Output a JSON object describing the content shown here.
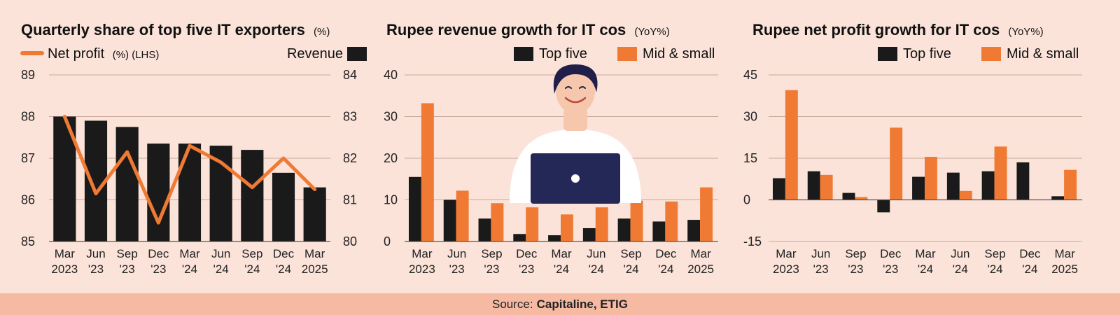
{
  "colors": {
    "dark": "#1a1a1a",
    "orange": "#f07a33",
    "background": "#fbe3d9",
    "source_band": "#f6b9a2"
  },
  "source": {
    "label": "Source:",
    "value": "Capitaline, ETIG"
  },
  "chart_data": [
    {
      "type": "bar+line",
      "title": "Quarterly share of top five IT exporters",
      "title_unit": "(%)",
      "legend": {
        "line_label": "Net profit",
        "line_unit": "(%) (LHS)",
        "bar_label": "Revenue"
      },
      "categories": [
        [
          "Mar",
          "2023"
        ],
        [
          "Jun",
          "'23"
        ],
        [
          "Sep",
          "'23"
        ],
        [
          "Dec",
          "'23"
        ],
        [
          "Mar",
          "'24"
        ],
        [
          "Jun",
          "'24"
        ],
        [
          "Sep",
          "'24"
        ],
        [
          "Dec",
          "'24"
        ],
        [
          "Mar",
          "2025"
        ]
      ],
      "left_axis": {
        "ticks": [
          "89",
          "88",
          "87",
          "86",
          "85"
        ],
        "min": 85,
        "max": 89
      },
      "right_axis": {
        "ticks": [
          "84",
          "83",
          "82",
          "81",
          "80"
        ],
        "min": 80,
        "max": 84
      },
      "series": [
        {
          "name": "Revenue",
          "axis": "right",
          "kind": "bar",
          "values": [
            83.0,
            82.9,
            82.75,
            82.35,
            82.35,
            82.3,
            82.2,
            81.65,
            81.3
          ]
        },
        {
          "name": "Net profit",
          "axis": "left",
          "kind": "line",
          "values": [
            88.0,
            86.15,
            87.15,
            85.45,
            87.3,
            86.9,
            86.3,
            87.0,
            86.25
          ]
        }
      ]
    },
    {
      "type": "bar",
      "title": "Rupee revenue growth for IT cos",
      "title_unit": "(YoY%)",
      "legend": [
        "Top five",
        "Mid & small"
      ],
      "categories": [
        [
          "Mar",
          "2023"
        ],
        [
          "Jun",
          "'23"
        ],
        [
          "Sep",
          "'23"
        ],
        [
          "Dec",
          "'23"
        ],
        [
          "Mar",
          "'24"
        ],
        [
          "Jun",
          "'24"
        ],
        [
          "Sep",
          "'24"
        ],
        [
          "Dec",
          "'24"
        ],
        [
          "Mar",
          "2025"
        ]
      ],
      "y_axis": {
        "ticks": [
          "40",
          "30",
          "20",
          "10",
          "0"
        ],
        "min": 0,
        "max": 40
      },
      "series": [
        {
          "name": "Top five",
          "values": [
            15.5,
            10.0,
            5.5,
            1.8,
            1.5,
            3.2,
            5.5,
            4.8,
            5.2
          ]
        },
        {
          "name": "Mid & small",
          "values": [
            33.2,
            12.2,
            9.2,
            8.2,
            6.5,
            8.2,
            9.8,
            9.6,
            13.0
          ]
        }
      ]
    },
    {
      "type": "bar",
      "title": "Rupee net profit growth for IT cos",
      "title_unit": "(YoY%)",
      "legend": [
        "Top five",
        "Mid & small"
      ],
      "categories": [
        [
          "Mar",
          "2023"
        ],
        [
          "Jun",
          "'23"
        ],
        [
          "Sep",
          "'23"
        ],
        [
          "Dec",
          "'23"
        ],
        [
          "Mar",
          "'24"
        ],
        [
          "Jun",
          "'24"
        ],
        [
          "Sep",
          "'24"
        ],
        [
          "Dec",
          "'24"
        ],
        [
          "Mar",
          "2025"
        ]
      ],
      "y_axis": {
        "ticks": [
          "45",
          "30",
          "15",
          "0",
          "-15"
        ],
        "min": -15,
        "max": 45
      },
      "series": [
        {
          "name": "Top five",
          "values": [
            7.8,
            10.3,
            2.5,
            -4.5,
            8.3,
            9.8,
            10.3,
            13.5,
            1.3
          ]
        },
        {
          "name": "Mid & small",
          "values": [
            39.5,
            9.0,
            1.0,
            26.0,
            15.5,
            3.2,
            19.2,
            0.0,
            10.8
          ]
        }
      ]
    }
  ]
}
